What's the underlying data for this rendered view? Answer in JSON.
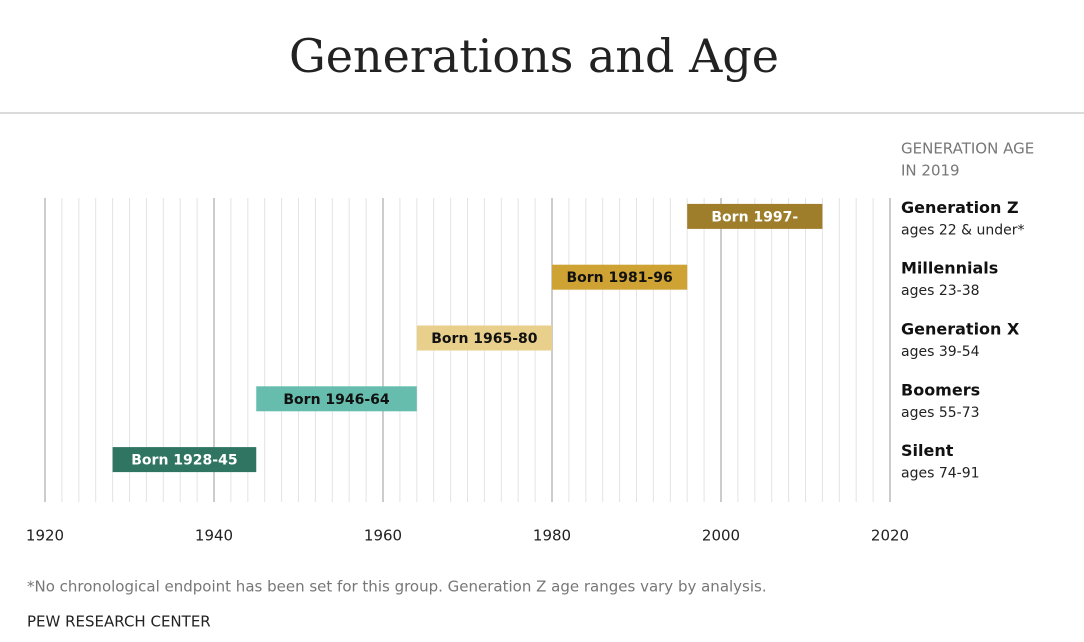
{
  "chart_data": {
    "type": "range-bar",
    "title": "Generations and Age",
    "right_header": [
      "GENERATION AGE",
      "IN 2019"
    ],
    "rows": [
      {
        "name": "Generation Z",
        "ages": "ages 22 & under*",
        "label": "Born 1997-",
        "start": 1996,
        "end": 2012,
        "color": "#9e7d2b",
        "label_color": "#ffffff"
      },
      {
        "name": "Millennials",
        "ages": "ages 23-38",
        "label": "Born 1981-96",
        "start": 1980,
        "end": 1996,
        "color": "#cfa333",
        "label_color": "#111111"
      },
      {
        "name": "Generation X",
        "ages": "ages 39-54",
        "label": "Born 1965-80",
        "start": 1964,
        "end": 1980,
        "color": "#e9cf8c",
        "label_color": "#111111"
      },
      {
        "name": "Boomers",
        "ages": "ages 55-73",
        "label": "Born 1946-64",
        "start": 1945,
        "end": 1964,
        "color": "#66bdad",
        "label_color": "#111111"
      },
      {
        "name": "Silent",
        "ages": "ages 74-91",
        "label": "Born 1928-45",
        "start": 1928,
        "end": 1945,
        "color": "#2f7561",
        "label_color": "#ffffff"
      }
    ],
    "xlim": [
      1920,
      2020
    ],
    "xticks": [
      1920,
      1940,
      1960,
      1980,
      2000,
      2020
    ],
    "minor_grid_step": 2,
    "grid": true,
    "footnote": "*No chronological endpoint has been set for this group. Generation Z age ranges vary by analysis.",
    "source": "PEW RESEARCH CENTER"
  }
}
